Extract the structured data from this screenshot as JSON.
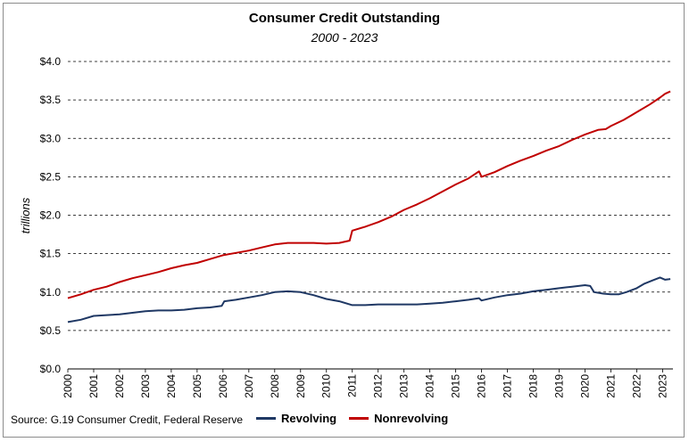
{
  "chart_data": {
    "type": "line",
    "title": "Consumer Credit Outstanding",
    "subtitle": "2000 - 2023",
    "ylabel": "trillions",
    "xlabel": "",
    "ylim": [
      0,
      4.0
    ],
    "xlim": [
      2000,
      2023.4
    ],
    "y_ticks": [
      "$0.0",
      "$0.5",
      "$1.0",
      "$1.5",
      "$2.0",
      "$2.5",
      "$3.0",
      "$3.5",
      "$4.0"
    ],
    "y_tick_values": [
      0,
      0.5,
      1.0,
      1.5,
      2.0,
      2.5,
      3.0,
      3.5,
      4.0
    ],
    "x_ticks": [
      "2000",
      "2001",
      "2002",
      "2003",
      "2004",
      "2005",
      "2006",
      "2007",
      "2008",
      "2009",
      "2010",
      "2011",
      "2012",
      "2013",
      "2014",
      "2015",
      "2016",
      "2017",
      "2018",
      "2019",
      "2020",
      "2021",
      "2022",
      "2023"
    ],
    "grid": "horizontal dashed",
    "legend_position": "bottom",
    "series": [
      {
        "name": "Revolving",
        "color": "#1f3864",
        "points": [
          [
            2000.0,
            0.61
          ],
          [
            2000.5,
            0.64
          ],
          [
            2001.0,
            0.69
          ],
          [
            2001.5,
            0.7
          ],
          [
            2002.0,
            0.71
          ],
          [
            2002.5,
            0.73
          ],
          [
            2003.0,
            0.75
          ],
          [
            2003.5,
            0.76
          ],
          [
            2004.0,
            0.76
          ],
          [
            2004.5,
            0.77
          ],
          [
            2005.0,
            0.79
          ],
          [
            2005.5,
            0.8
          ],
          [
            2005.95,
            0.82
          ],
          [
            2006.05,
            0.88
          ],
          [
            2006.5,
            0.9
          ],
          [
            2007.0,
            0.93
          ],
          [
            2007.5,
            0.96
          ],
          [
            2008.0,
            1.0
          ],
          [
            2008.5,
            1.01
          ],
          [
            2009.0,
            1.0
          ],
          [
            2009.5,
            0.96
          ],
          [
            2010.0,
            0.91
          ],
          [
            2010.5,
            0.88
          ],
          [
            2011.0,
            0.83
          ],
          [
            2011.5,
            0.83
          ],
          [
            2012.0,
            0.84
          ],
          [
            2012.5,
            0.84
          ],
          [
            2013.0,
            0.84
          ],
          [
            2013.5,
            0.84
          ],
          [
            2014.0,
            0.85
          ],
          [
            2014.5,
            0.86
          ],
          [
            2015.0,
            0.88
          ],
          [
            2015.5,
            0.9
          ],
          [
            2015.9,
            0.92
          ],
          [
            2016.0,
            0.89
          ],
          [
            2016.5,
            0.93
          ],
          [
            2017.0,
            0.96
          ],
          [
            2017.5,
            0.98
          ],
          [
            2018.0,
            1.01
          ],
          [
            2018.5,
            1.03
          ],
          [
            2019.0,
            1.05
          ],
          [
            2019.5,
            1.07
          ],
          [
            2020.0,
            1.09
          ],
          [
            2020.2,
            1.08
          ],
          [
            2020.35,
            1.0
          ],
          [
            2020.7,
            0.98
          ],
          [
            2021.0,
            0.97
          ],
          [
            2021.3,
            0.97
          ],
          [
            2021.6,
            1.0
          ],
          [
            2022.0,
            1.05
          ],
          [
            2022.3,
            1.11
          ],
          [
            2022.6,
            1.15
          ],
          [
            2022.9,
            1.19
          ],
          [
            2023.1,
            1.16
          ],
          [
            2023.3,
            1.17
          ]
        ]
      },
      {
        "name": "Nonrevolving",
        "color": "#c00000",
        "points": [
          [
            2000.0,
            0.92
          ],
          [
            2000.5,
            0.97
          ],
          [
            2001.0,
            1.03
          ],
          [
            2001.5,
            1.07
          ],
          [
            2002.0,
            1.13
          ],
          [
            2002.5,
            1.18
          ],
          [
            2003.0,
            1.22
          ],
          [
            2003.5,
            1.26
          ],
          [
            2004.0,
            1.31
          ],
          [
            2004.5,
            1.35
          ],
          [
            2005.0,
            1.38
          ],
          [
            2005.5,
            1.43
          ],
          [
            2006.0,
            1.48
          ],
          [
            2006.5,
            1.51
          ],
          [
            2007.0,
            1.54
          ],
          [
            2007.5,
            1.58
          ],
          [
            2008.0,
            1.62
          ],
          [
            2008.5,
            1.64
          ],
          [
            2009.0,
            1.64
          ],
          [
            2009.5,
            1.64
          ],
          [
            2010.0,
            1.63
          ],
          [
            2010.5,
            1.64
          ],
          [
            2010.9,
            1.67
          ],
          [
            2011.0,
            1.8
          ],
          [
            2011.5,
            1.85
          ],
          [
            2012.0,
            1.91
          ],
          [
            2012.5,
            1.98
          ],
          [
            2013.0,
            2.07
          ],
          [
            2013.5,
            2.14
          ],
          [
            2014.0,
            2.22
          ],
          [
            2014.5,
            2.31
          ],
          [
            2015.0,
            2.4
          ],
          [
            2015.5,
            2.48
          ],
          [
            2015.9,
            2.57
          ],
          [
            2016.0,
            2.5
          ],
          [
            2016.5,
            2.56
          ],
          [
            2017.0,
            2.64
          ],
          [
            2017.5,
            2.71
          ],
          [
            2018.0,
            2.77
          ],
          [
            2018.5,
            2.84
          ],
          [
            2019.0,
            2.9
          ],
          [
            2019.5,
            2.98
          ],
          [
            2020.0,
            3.05
          ],
          [
            2020.5,
            3.11
          ],
          [
            2020.8,
            3.12
          ],
          [
            2021.0,
            3.16
          ],
          [
            2021.5,
            3.24
          ],
          [
            2022.0,
            3.34
          ],
          [
            2022.5,
            3.44
          ],
          [
            2022.9,
            3.53
          ],
          [
            2023.1,
            3.58
          ],
          [
            2023.3,
            3.61
          ]
        ]
      }
    ]
  },
  "footer": {
    "source": "Source: G.19 Consumer Credit, Federal Reserve"
  }
}
